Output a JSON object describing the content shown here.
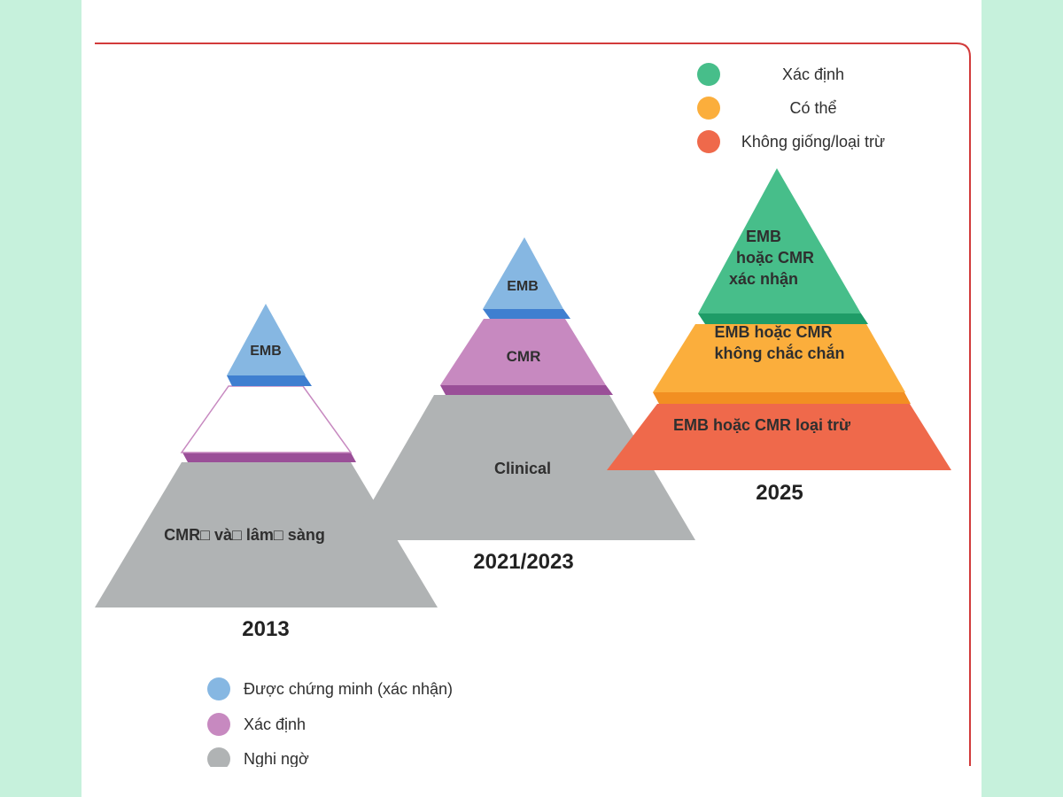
{
  "colors": {
    "blue": "#86b7e2",
    "blue_dark": "#3f7fd0",
    "purple": "#c789c0",
    "purple_dark": "#9a4f98",
    "gray": "#b0b3b4",
    "green": "#47be8a",
    "green_dark": "#1e9c67",
    "orange": "#fbae3c",
    "orange_dark": "#f28f22",
    "red": "#ef694b",
    "frame": "#d23b3b"
  },
  "legend_top": [
    {
      "label": "Xác định",
      "color": "#47be8a"
    },
    {
      "label": "Có thể",
      "color": "#fbae3c"
    },
    {
      "label": "Không giống/loại trừ",
      "color": "#ef694b"
    }
  ],
  "legend_bottom": [
    {
      "label": "Được chứng minh (xác nhận)",
      "color": "#86b7e2"
    },
    {
      "label": "Xác định",
      "color": "#c789c0"
    },
    {
      "label": "Nghi ngờ",
      "color": "#b0b3b4"
    }
  ],
  "pyramid_2013": {
    "year": "2013",
    "top": "EMB",
    "base": "CMR□ và□ lâm□ sàng"
  },
  "pyramid_2021": {
    "year": "2021/2023",
    "top": "EMB",
    "mid": "CMR",
    "base": "Clinical"
  },
  "pyramid_2025": {
    "year": "2025",
    "top_lines": [
      "EMB",
      "hoặc CMR",
      "xác nhận"
    ],
    "mid_lines": [
      "EMB hoặc CMR",
      "không chắc chắn"
    ],
    "base": "EMB hoặc CMR loại trừ"
  }
}
